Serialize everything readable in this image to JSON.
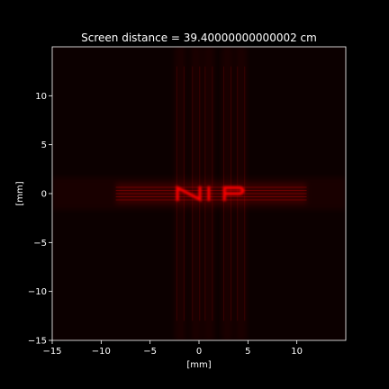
{
  "chart_data": {
    "type": "heatmap",
    "title": "Screen distance = 39.40000000000002 cm",
    "xlabel": "[mm]",
    "ylabel": "[mm]",
    "xlim": [
      -15,
      15
    ],
    "ylim": [
      -15,
      15
    ],
    "x_ticks": [
      -15,
      -10,
      -5,
      0,
      5,
      10
    ],
    "y_ticks": [
      -15,
      -10,
      -5,
      0,
      5,
      10
    ],
    "x_tick_labels": [
      "−15",
      "−10",
      "−5",
      "0",
      "5",
      "10"
    ],
    "y_tick_labels": [
      "−15",
      "−10",
      "−5",
      "0",
      "5",
      "10"
    ],
    "grid": false,
    "colormap": "black-to-red",
    "image_text": "NIP",
    "letters": [
      {
        "char": "N",
        "x_range": [
          -2.2,
          0.1
        ],
        "y_range": [
          -0.6,
          0.6
        ]
      },
      {
        "char": "I",
        "x_range": [
          0.7,
          1.3
        ],
        "y_range": [
          -0.6,
          0.6
        ]
      },
      {
        "char": "P",
        "x_range": [
          2.6,
          4.5
        ],
        "y_range": [
          -0.6,
          0.6
        ]
      }
    ],
    "vertical_fringes_x": [
      -1.9,
      -0.3,
      1.0,
      2.9,
      4.3
    ],
    "horizontal_band_y": 0,
    "horizontal_band_x_range": [
      -8.5,
      11
    ]
  },
  "colors": {
    "background": "#000000",
    "axes_face": "#0c0000",
    "axis": "#ffffff",
    "intensity": "#ff0000"
  }
}
